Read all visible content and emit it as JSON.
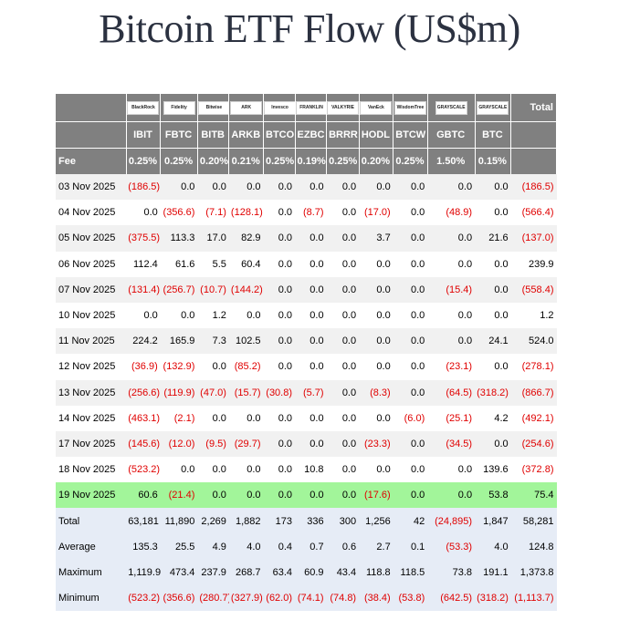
{
  "title": "Bitcoin ETF Flow (US$m)",
  "header": {
    "logos": [
      {
        "name": "blackrock-logo",
        "text": "BlackRock"
      },
      {
        "name": "fidelity-logo",
        "text": "Fidelity"
      },
      {
        "name": "bitwise-logo",
        "text": "Bitwise"
      },
      {
        "name": "ark-logo",
        "text": "ARK"
      },
      {
        "name": "invesco-logo",
        "text": "Invesco"
      },
      {
        "name": "franklin-logo",
        "text": "FRANKLIN"
      },
      {
        "name": "valkyrie-logo",
        "text": "VALKYRIE"
      },
      {
        "name": "vaneck-logo",
        "text": "VanEck"
      },
      {
        "name": "wisdomtree-logo",
        "text": "WisdomTree"
      },
      {
        "name": "grayscale-gbtc-logo",
        "text": "GRAYSCALE"
      },
      {
        "name": "grayscale-btc-logo",
        "text": "GRAYSCALE"
      }
    ],
    "total_label": "Total",
    "tickers": [
      "IBIT",
      "FBTC",
      "BITB",
      "ARKB",
      "BTCO",
      "EZBC",
      "BRRR",
      "HODL",
      "BTCW",
      "GBTC",
      "BTC"
    ],
    "fee_label": "Fee",
    "fees": [
      "0.25%",
      "0.25%",
      "0.20%",
      "0.21%",
      "0.25%",
      "0.19%",
      "0.25%",
      "0.20%",
      "0.25%",
      "1.50%",
      "0.15%"
    ]
  },
  "chart_data": {
    "type": "table",
    "title": "Bitcoin ETF Flow (US$m)",
    "columns": [
      "IBIT",
      "FBTC",
      "BITB",
      "ARKB",
      "BTCO",
      "EZBC",
      "BRRR",
      "HODL",
      "BTCW",
      "GBTC",
      "BTC",
      "Total"
    ],
    "rows": [
      {
        "date": "03 Nov 2025",
        "values": [
          "(186.5)",
          "0.0",
          "0.0",
          "0.0",
          "0.0",
          "0.0",
          "0.0",
          "0.0",
          "0.0",
          "0.0",
          "0.0",
          "(186.5)"
        ]
      },
      {
        "date": "04 Nov 2025",
        "values": [
          "0.0",
          "(356.6)",
          "(7.1)",
          "(128.1)",
          "0.0",
          "(8.7)",
          "0.0",
          "(17.0)",
          "0.0",
          "(48.9)",
          "0.0",
          "(566.4)"
        ]
      },
      {
        "date": "05 Nov 2025",
        "values": [
          "(375.5)",
          "113.3",
          "17.0",
          "82.9",
          "0.0",
          "0.0",
          "0.0",
          "3.7",
          "0.0",
          "0.0",
          "21.6",
          "(137.0)"
        ]
      },
      {
        "date": "06 Nov 2025",
        "values": [
          "112.4",
          "61.6",
          "5.5",
          "60.4",
          "0.0",
          "0.0",
          "0.0",
          "0.0",
          "0.0",
          "0.0",
          "0.0",
          "239.9"
        ]
      },
      {
        "date": "07 Nov 2025",
        "values": [
          "(131.4)",
          "(256.7)",
          "(10.7)",
          "(144.2)",
          "0.0",
          "0.0",
          "0.0",
          "0.0",
          "0.0",
          "(15.4)",
          "0.0",
          "(558.4)"
        ]
      },
      {
        "date": "10 Nov 2025",
        "values": [
          "0.0",
          "0.0",
          "1.2",
          "0.0",
          "0.0",
          "0.0",
          "0.0",
          "0.0",
          "0.0",
          "0.0",
          "0.0",
          "1.2"
        ]
      },
      {
        "date": "11 Nov 2025",
        "values": [
          "224.2",
          "165.9",
          "7.3",
          "102.5",
          "0.0",
          "0.0",
          "0.0",
          "0.0",
          "0.0",
          "0.0",
          "24.1",
          "524.0"
        ]
      },
      {
        "date": "12 Nov 2025",
        "values": [
          "(36.9)",
          "(132.9)",
          "0.0",
          "(85.2)",
          "0.0",
          "0.0",
          "0.0",
          "0.0",
          "0.0",
          "(23.1)",
          "0.0",
          "(278.1)"
        ]
      },
      {
        "date": "13 Nov 2025",
        "values": [
          "(256.6)",
          "(119.9)",
          "(47.0)",
          "(15.7)",
          "(30.8)",
          "(5.7)",
          "0.0",
          "(8.3)",
          "0.0",
          "(64.5)",
          "(318.2)",
          "(866.7)"
        ]
      },
      {
        "date": "14 Nov 2025",
        "values": [
          "(463.1)",
          "(2.1)",
          "0.0",
          "0.0",
          "0.0",
          "0.0",
          "0.0",
          "0.0",
          "(6.0)",
          "(25.1)",
          "4.2",
          "(492.1)"
        ]
      },
      {
        "date": "17 Nov 2025",
        "values": [
          "(145.6)",
          "(12.0)",
          "(9.5)",
          "(29.7)",
          "0.0",
          "0.0",
          "0.0",
          "(23.3)",
          "0.0",
          "(34.5)",
          "0.0",
          "(254.6)"
        ]
      },
      {
        "date": "18 Nov 2025",
        "values": [
          "(523.2)",
          "0.0",
          "0.0",
          "0.0",
          "0.0",
          "10.8",
          "0.0",
          "0.0",
          "0.0",
          "0.0",
          "139.6",
          "(372.8)"
        ]
      },
      {
        "date": "19 Nov 2025",
        "values": [
          "60.6",
          "(21.4)",
          "0.0",
          "0.0",
          "0.0",
          "0.0",
          "0.0",
          "(17.6)",
          "0.0",
          "0.0",
          "53.8",
          "75.4"
        ],
        "highlight": true
      }
    ],
    "summary": [
      {
        "label": "Total",
        "values": [
          "63,181",
          "11,890",
          "2,269",
          "1,882",
          "173",
          "336",
          "300",
          "1,256",
          "42",
          "(24,895)",
          "1,847",
          "58,281"
        ]
      },
      {
        "label": "Average",
        "values": [
          "135.3",
          "25.5",
          "4.9",
          "4.0",
          "0.4",
          "0.7",
          "0.6",
          "2.7",
          "0.1",
          "(53.3)",
          "4.0",
          "124.8"
        ]
      },
      {
        "label": "Maximum",
        "values": [
          "1,119.9",
          "473.4",
          "237.9",
          "268.7",
          "63.4",
          "60.9",
          "43.4",
          "118.8",
          "118.5",
          "73.8",
          "191.1",
          "1,373.8"
        ]
      },
      {
        "label": "Minimum",
        "values": [
          "(523.2)",
          "(356.6)",
          "(280.7)",
          "(327.9)",
          "(62.0)",
          "(74.1)",
          "(74.8)",
          "(38.4)",
          "(53.8)",
          "(642.5)",
          "(318.2)",
          "(1,113.7)"
        ]
      }
    ],
    "colors": {
      "header": "#808080",
      "negative": "#e00000",
      "highlight": "#a2f59a",
      "summary": "#e6ecf6",
      "stripe": "#f1f1f1"
    }
  }
}
